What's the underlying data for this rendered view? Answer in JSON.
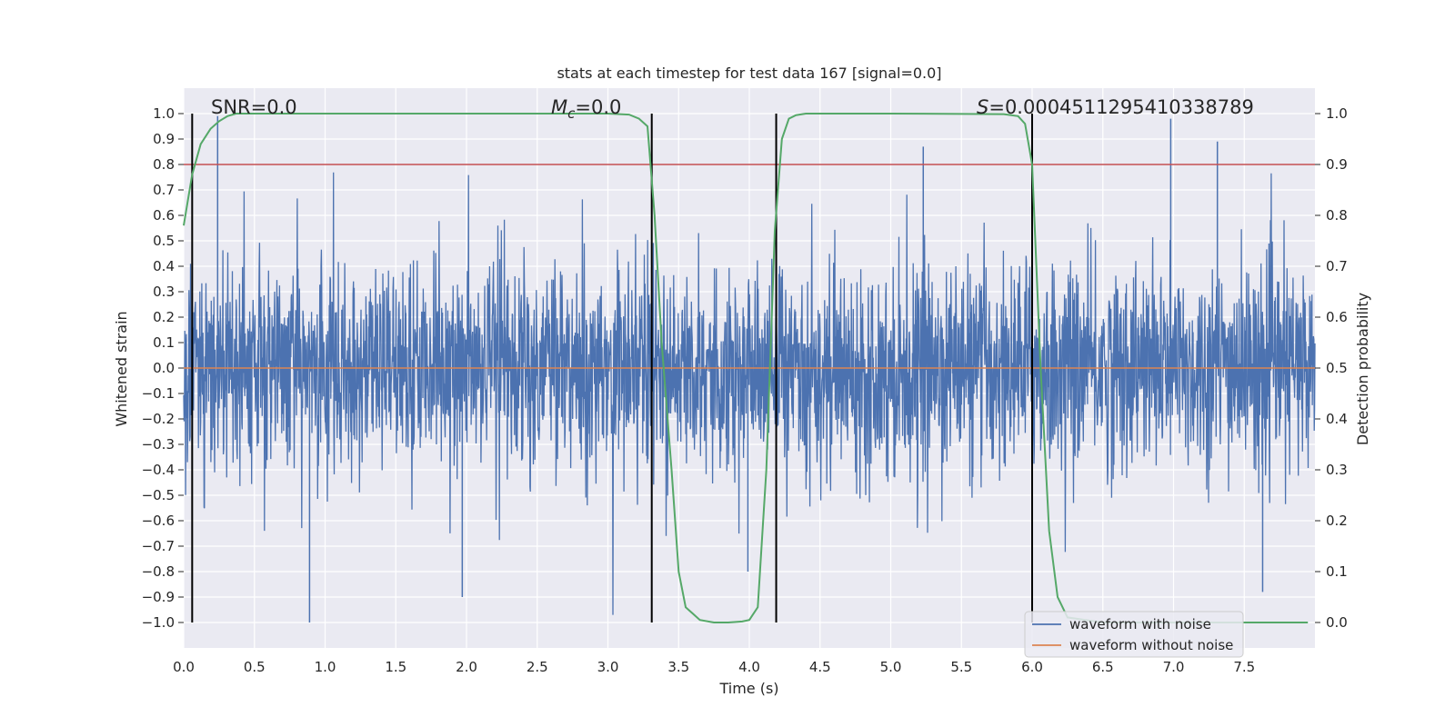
{
  "chart_data": {
    "type": "line",
    "title": "stats at each timestep for test data 167 [signal=0.0]",
    "xlabel": "Time (s)",
    "ylabel": "Whitened strain",
    "y2label": "Detection probability",
    "xlim": [
      0,
      8
    ],
    "ylim": [
      -1.1,
      1.1
    ],
    "y2lim": [
      -0.05,
      1.05
    ],
    "grid": true,
    "x_ticks": [
      0.0,
      0.5,
      1.0,
      1.5,
      2.0,
      2.5,
      3.0,
      3.5,
      4.0,
      4.5,
      5.0,
      5.5,
      6.0,
      6.5,
      7.0,
      7.5
    ],
    "x_tick_labels": [
      "0.0",
      "0.5",
      "1.0",
      "1.5",
      "2.0",
      "2.5",
      "3.0",
      "3.5",
      "4.0",
      "4.5",
      "5.0",
      "5.5",
      "6.0",
      "6.5",
      "7.0",
      "7.5"
    ],
    "y_ticks": [
      1.0,
      0.9,
      0.8,
      0.7,
      0.6,
      0.5,
      0.4,
      0.3,
      0.2,
      0.1,
      0.0,
      -0.1,
      -0.2,
      -0.3,
      -0.4,
      -0.5,
      -0.6,
      -0.7,
      -0.8,
      -0.9,
      -1.0
    ],
    "y_tick_labels": [
      "1.0",
      "0.9",
      "0.8",
      "0.7",
      "0.6",
      "0.5",
      "0.4",
      "0.3",
      "0.2",
      "0.1",
      "0.0",
      "−0.1",
      "−0.2",
      "−0.3",
      "−0.4",
      "−0.5",
      "−0.6",
      "−0.7",
      "−0.8",
      "−0.9",
      "−1.0"
    ],
    "y2_ticks": [
      1.0,
      0.9,
      0.8,
      0.7,
      0.6,
      0.5,
      0.4,
      0.3,
      0.2,
      0.1,
      0.0
    ],
    "y2_tick_labels": [
      "1.0",
      "0.9",
      "0.8",
      "0.7",
      "0.6",
      "0.5",
      "0.4",
      "0.3",
      "0.2",
      "0.1",
      "0.0"
    ],
    "annotations": {
      "snr": "SNR=0.0",
      "mc_symbol": "M",
      "mc_sub": "c",
      "mc_value": "=0.0",
      "s_symbol": "S",
      "s_value": "=0.00045112954103387 89"
    },
    "series": [
      {
        "name": "waveform with noise",
        "color": "#4c72b0",
        "description": "dense whitened strain noise, amplitude roughly within -1.0..1.0",
        "extremes": [
          {
            "x": 0.24,
            "y": 0.99
          },
          {
            "x": 0.89,
            "y": -1.0
          },
          {
            "x": 1.97,
            "y": -0.9
          },
          {
            "x": 6.98,
            "y": 0.98
          },
          {
            "x": 7.31,
            "y": 0.89
          },
          {
            "x": 7.63,
            "y": -0.88
          },
          {
            "x": 5.23,
            "y": 0.87
          },
          {
            "x": 3.99,
            "y": -0.8
          }
        ]
      },
      {
        "name": "waveform without noise",
        "color": "#dd8452",
        "x": [
          0,
          8
        ],
        "y": [
          0,
          0
        ]
      },
      {
        "name": "detection probability",
        "color": "#55a868",
        "axis": "y2",
        "x": [
          0.0,
          0.06,
          0.12,
          0.19,
          0.25,
          0.31,
          0.37,
          0.5,
          1.0,
          2.0,
          3.0,
          3.15,
          3.22,
          3.28,
          3.33,
          3.38,
          3.45,
          3.5,
          3.55,
          3.65,
          3.75,
          3.85,
          3.95,
          4.0,
          4.06,
          4.12,
          4.18,
          4.23,
          4.28,
          4.33,
          4.4,
          5.0,
          5.8,
          5.9,
          5.95,
          6.0,
          6.06,
          6.12,
          6.18,
          6.25,
          6.5,
          7.0,
          7.5,
          7.95
        ],
        "y": [
          0.78,
          0.88,
          0.94,
          0.97,
          0.985,
          0.995,
          1.0,
          1.0,
          1.0,
          1.0,
          1.0,
          0.998,
          0.99,
          0.975,
          0.8,
          0.55,
          0.3,
          0.1,
          0.03,
          0.005,
          0.0,
          0.0,
          0.002,
          0.005,
          0.03,
          0.3,
          0.77,
          0.95,
          0.99,
          0.997,
          1.0,
          1.0,
          0.999,
          0.995,
          0.98,
          0.9,
          0.5,
          0.18,
          0.05,
          0.01,
          0.0,
          0.0,
          0.0,
          0.0
        ]
      }
    ],
    "threshold": {
      "value": 0.9,
      "axis": "y2",
      "color": "#c44e52"
    },
    "vertical_markers": {
      "x": [
        0.06,
        3.31,
        4.19,
        6.0
      ],
      "color": "#000000",
      "ymin": -1.0,
      "ymax": 1.0
    },
    "legend": {
      "position": "lower-right",
      "entries": [
        "waveform with noise",
        "waveform without noise"
      ]
    },
    "colors": {
      "plot_bg": "#eaeaf2",
      "grid": "#ffffff",
      "strain": "#4c72b0",
      "clean": "#dd8452",
      "prob": "#55a868",
      "threshold": "#c44e52"
    }
  }
}
